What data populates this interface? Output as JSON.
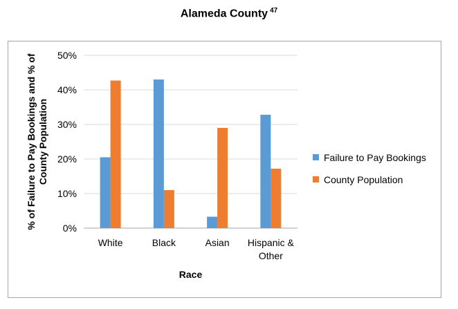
{
  "title": "Alameda County",
  "title_footnote": "47",
  "chart_data": {
    "type": "bar",
    "categories": [
      [
        "White"
      ],
      [
        "Black"
      ],
      [
        "Asian"
      ],
      [
        "Hispanic &",
        "Other"
      ]
    ],
    "series": [
      {
        "name": "Failure to Pay Bookings",
        "values": [
          20.5,
          43,
          3.3,
          32.8
        ],
        "color": "#5b9bd5"
      },
      {
        "name": "County Population",
        "values": [
          42.7,
          11,
          29,
          17.2
        ],
        "color": "#ed7d31"
      }
    ],
    "xlabel": "Race",
    "ylabel": [
      "% of Failure to Pay Bookings and % of",
      "County Population"
    ],
    "ylim": [
      0,
      50
    ],
    "yticks": [
      0,
      10,
      20,
      30,
      40,
      50
    ],
    "ytick_format": "{v}%",
    "grid": true,
    "legend_position": "right"
  }
}
